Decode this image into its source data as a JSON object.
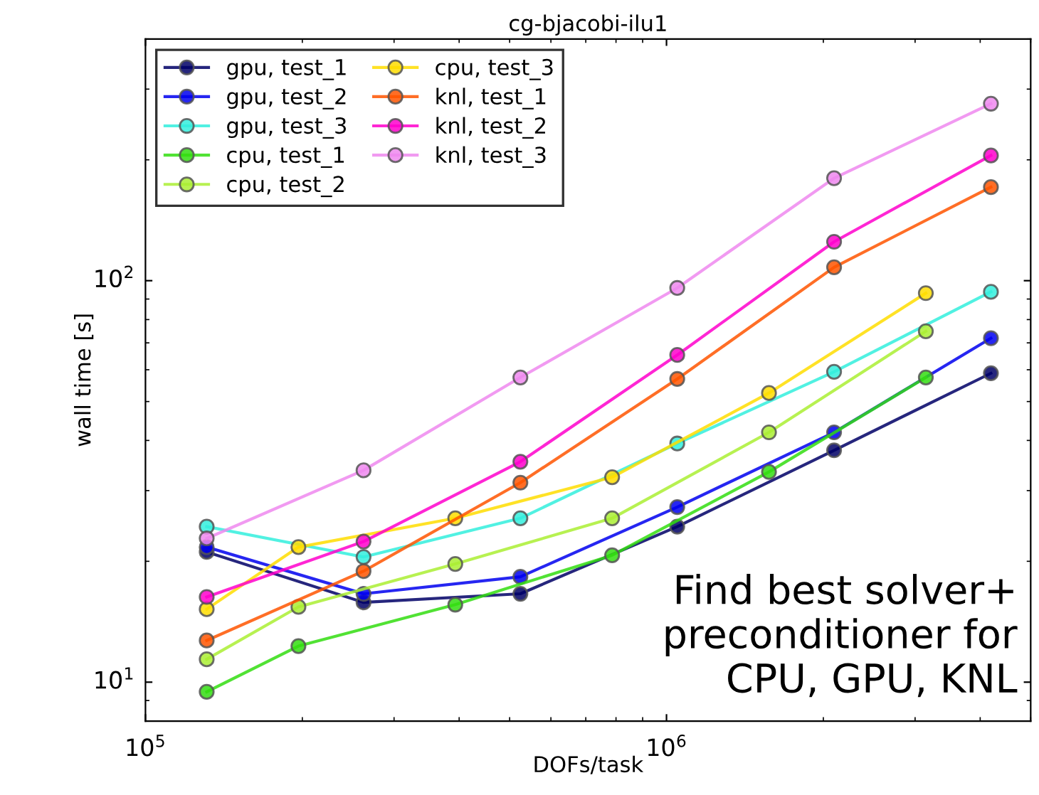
{
  "chart_data": {
    "type": "line",
    "title": "cg-bjacobi-ilu1",
    "xlabel": "DOFs/task",
    "ylabel": "wall time [s]",
    "log": "xy",
    "xlim": [
      100000,
      5000000
    ],
    "ylim": [
      8,
      400
    ],
    "xticks": [
      {
        "value": 100000,
        "label": "10$^{5}$"
      },
      {
        "value": 1000000,
        "label": "10$^{6}$"
      }
    ],
    "yticks": [
      {
        "value": 10,
        "label": "10$^{1}$"
      },
      {
        "value": 100,
        "label": "10$^{2}$"
      }
    ],
    "grid": false,
    "legend": "top left",
    "marker": "circle",
    "line_style": "solid",
    "annotations": [
      "Find best solver+\npreconditioner for\nCPU, GPU, KNL"
    ],
    "series": [
      {
        "name": "gpu, test_1",
        "color": "#000066",
        "x": [
          131072,
          262144,
          524288,
          1048576,
          2097152,
          4194304
        ],
        "values": [
          21.1,
          15.8,
          16.6,
          24.4,
          37.8,
          58.8
        ]
      },
      {
        "name": "gpu, test_2",
        "color": "#0000ee",
        "x": [
          131072,
          262144,
          524288,
          1048576,
          2097152,
          4194304
        ],
        "values": [
          21.7,
          16.6,
          18.3,
          27.3,
          41.9,
          71.9
        ]
      },
      {
        "name": "gpu, test_3",
        "color": "#33eedd",
        "x": [
          131072,
          262144,
          524288,
          1048576,
          2097152,
          4194304
        ],
        "values": [
          24.4,
          20.5,
          25.6,
          39.3,
          59.3,
          93.8
        ]
      },
      {
        "name": "cpu, test_1",
        "color": "#33dd11",
        "x": [
          131072,
          196608,
          393216,
          786432,
          1572864,
          3145728
        ],
        "values": [
          9.46,
          12.3,
          15.6,
          20.7,
          33.4,
          57.4
        ]
      },
      {
        "name": "cpu, test_2",
        "color": "#aaee33",
        "x": [
          131072,
          196608,
          393216,
          786432,
          1572864,
          3145728
        ],
        "values": [
          11.4,
          15.4,
          19.7,
          25.6,
          41.9,
          74.8
        ]
      },
      {
        "name": "cpu, test_3",
        "color": "#ffdd00",
        "x": [
          131072,
          196608,
          393216,
          786432,
          1572864,
          3145728
        ],
        "values": [
          15.2,
          21.7,
          25.6,
          32.4,
          52.5,
          93.1
        ]
      },
      {
        "name": "knl, test_1",
        "color": "#ff5500",
        "x": [
          131072,
          262144,
          524288,
          1048576,
          2097152,
          4194304
        ],
        "values": [
          12.7,
          18.9,
          31.4,
          56.9,
          108,
          171
        ]
      },
      {
        "name": "knl, test_2",
        "color": "#ff00cc",
        "x": [
          131072,
          262144,
          524288,
          1048576,
          2097152,
          4194304
        ],
        "values": [
          16.3,
          22.4,
          35.4,
          65.3,
          125,
          205
        ]
      },
      {
        "name": "knl, test_3",
        "color": "#ee88ee",
        "x": [
          131072,
          262144,
          524288,
          1048576,
          2097152,
          4194304
        ],
        "values": [
          22.8,
          33.7,
          57.4,
          95.9,
          180,
          276
        ]
      }
    ]
  }
}
